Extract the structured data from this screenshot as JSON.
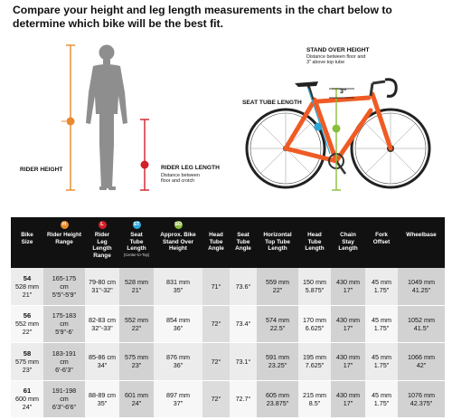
{
  "headline": "Compare your height and leg length measurements in the chart below to determine which bike will be the best fit.",
  "figure": {
    "stand_over_title": "STAND OVER HEIGHT",
    "stand_over_sub1": "Distance between floor and",
    "stand_over_sub2": "3\" above top tube",
    "seat_tube_label": "SEAT TUBE LENGTH",
    "three_inch": "3\"",
    "rider_height_label": "RIDER HEIGHT",
    "rider_leg_title": "RIDER LEG LENGTH",
    "rider_leg_sub1": "Distance between",
    "rider_leg_sub2": "floor and crotch",
    "badge_height": "H",
    "badge_leg": "L",
    "badge_st": "ST",
    "badge_so": "SO",
    "colors": {
      "height": "#e8892b",
      "leg": "#d0202a",
      "seat_tube": "#2aa6d8",
      "stand_over": "#8bbd3a",
      "bike_frame": "#ef5b24"
    }
  },
  "table": {
    "headers": [
      {
        "badge": "",
        "l1": "Bike",
        "l2": "Size",
        "l3": "",
        "l4": "",
        "note": ""
      },
      {
        "badge": "H",
        "l1": "Rider Height",
        "l2": "Range",
        "l3": "",
        "l4": "",
        "note": ""
      },
      {
        "badge": "L",
        "l1": "Rider",
        "l2": "Leg",
        "l3": "Length",
        "l4": "Range",
        "note": ""
      },
      {
        "badge": "ST",
        "l1": "Seat",
        "l2": "Tube",
        "l3": "Length",
        "l4": "",
        "note": "(Center-to-Top)"
      },
      {
        "badge": "SO",
        "l1": "Approx. Bike",
        "l2": "Stand Over",
        "l3": "Height",
        "l4": "",
        "note": ""
      },
      {
        "badge": "",
        "l1": "Head",
        "l2": "Tube",
        "l3": "Angle",
        "l4": "",
        "note": ""
      },
      {
        "badge": "",
        "l1": "Seat",
        "l2": "Tube",
        "l3": "Angle",
        "l4": "",
        "note": ""
      },
      {
        "badge": "",
        "l1": "Horizontal",
        "l2": "Top Tube",
        "l3": "Length",
        "l4": "",
        "note": ""
      },
      {
        "badge": "",
        "l1": "Head",
        "l2": "Tube",
        "l3": "Length",
        "l4": "",
        "note": ""
      },
      {
        "badge": "",
        "l1": "Chain",
        "l2": "Stay",
        "l3": "Length",
        "l4": "",
        "note": ""
      },
      {
        "badge": "",
        "l1": "Fork",
        "l2": "Offset",
        "l3": "",
        "l4": "",
        "note": ""
      },
      {
        "badge": "",
        "l1": "Wheelbase",
        "l2": "",
        "l3": "",
        "l4": "",
        "note": ""
      }
    ],
    "badge_colors": [
      "",
      "#e8892b",
      "#d0202a",
      "#2aa6d8",
      "#8bbd3a",
      "",
      "",
      "",
      "",
      "",
      "",
      ""
    ],
    "rows": [
      {
        "size": "54",
        "size_mm": "528 mm",
        "size_in": "21\"",
        "height_cm": "165-175",
        "height_cm2": "cm",
        "height_ft": "5'5\"-5'9\"",
        "leg_cm": "79-80 cm",
        "leg_in": "31\"-32\"",
        "st_mm": "528 mm",
        "st_in": "21\"",
        "so_mm": "831 mm",
        "so_in": "35\"",
        "hta": "71°",
        "sta": "73.6°",
        "tt_mm": "559 mm",
        "tt_in": "22\"",
        "ht_mm": "150 mm",
        "ht_in": "5.875\"",
        "cs_mm": "430 mm",
        "cs_in": "17\"",
        "fo_mm": "45 mm",
        "fo_in": "1.75\"",
        "wb_mm": "1049 mm",
        "wb_in": "41.25\""
      },
      {
        "size": "56",
        "size_mm": "552 mm",
        "size_in": "22\"",
        "height_cm": "175-183",
        "height_cm2": "cm",
        "height_ft": "5'9\"-6'",
        "leg_cm": "82-83 cm",
        "leg_in": "32\"-33\"",
        "st_mm": "552 mm",
        "st_in": "22\"",
        "so_mm": "854 mm",
        "so_in": "36\"",
        "hta": "72°",
        "sta": "73.4°",
        "tt_mm": "574 mm",
        "tt_in": "22.5\"",
        "ht_mm": "170 mm",
        "ht_in": "6.625\"",
        "cs_mm": "430 mm",
        "cs_in": "17\"",
        "fo_mm": "45 mm",
        "fo_in": "1.75\"",
        "wb_mm": "1052 mm",
        "wb_in": "41.5\""
      },
      {
        "size": "58",
        "size_mm": "575 mm",
        "size_in": "23\"",
        "height_cm": "183-191",
        "height_cm2": "cm",
        "height_ft": "6'-6'3\"",
        "leg_cm": "85-86 cm",
        "leg_in": "34\"",
        "st_mm": "575 mm",
        "st_in": "23\"",
        "so_mm": "876 mm",
        "so_in": "36\"",
        "hta": "72°",
        "sta": "73.1°",
        "tt_mm": "591 mm",
        "tt_in": "23.25\"",
        "ht_mm": "195 mm",
        "ht_in": "7.625\"",
        "cs_mm": "430 mm",
        "cs_in": "17\"",
        "fo_mm": "45 mm",
        "fo_in": "1.75\"",
        "wb_mm": "1066 mm",
        "wb_in": "42\""
      },
      {
        "size": "61",
        "size_mm": "600 mm",
        "size_in": "24\"",
        "height_cm": "191-198",
        "height_cm2": "cm",
        "height_ft": "6'3\"-6'6\"",
        "leg_cm": "88-89 cm",
        "leg_in": "35\"",
        "st_mm": "601 mm",
        "st_in": "24\"",
        "so_mm": "897 mm",
        "so_in": "37\"",
        "hta": "72°",
        "sta": "72.7°",
        "tt_mm": "605 mm",
        "tt_in": "23.875\"",
        "ht_mm": "215 mm",
        "ht_in": "8.5\"",
        "cs_mm": "430 mm",
        "cs_in": "17\"",
        "fo_mm": "45 mm",
        "fo_in": "1.75\"",
        "wb_mm": "1076 mm",
        "wb_in": "42.375\""
      }
    ]
  }
}
